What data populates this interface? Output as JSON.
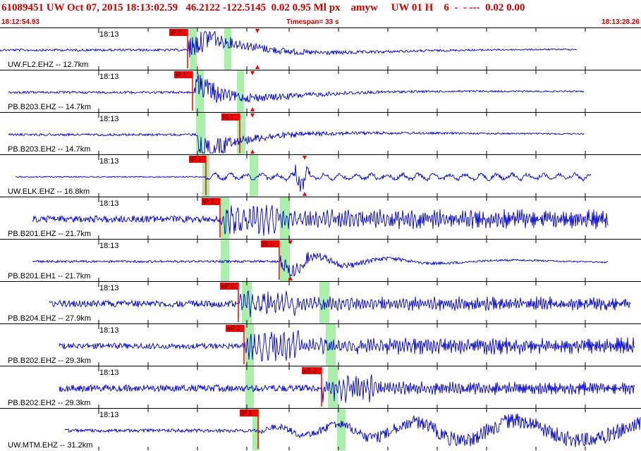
{
  "header": {
    "title": "61089451 UW Oct 07, 2015 18:13:02.59   46.2122 -122.5145  0.02 0.95 Ml px    amyw     UW 01 H    6  -  - ---  0.02 0.00",
    "start_time": "18:12:54.93",
    "timespan": "Timespan=  33 s",
    "end_time": "18:13:28.26"
  },
  "colors": {
    "header_text": "#cc0000",
    "waveform": "#0000cc",
    "pick_flag": "#ff0000",
    "pick_window": "#aaf0aa",
    "divider": "#000000",
    "tick": "#000000"
  },
  "time_tick_label": "18:13",
  "traces": [
    {
      "label": "UW.FL2.EHZ -- 12.7km",
      "picks": [
        {
          "text": "iP 0"
        }
      ],
      "shape": "impulsive"
    },
    {
      "label": "PB.B203.EHZ -- 14.7km",
      "picks": [
        {
          "text": "iP 1"
        }
      ],
      "shape": "impulsive"
    },
    {
      "label": "PB.B203.EH2 -- 14.7km",
      "picks": [
        {
          "text": "iS 1"
        }
      ],
      "shape": "impulsive"
    },
    {
      "label": "UW.ELK.EHZ -- 16.8km",
      "picks": [
        {
          "text": "iP 1"
        }
      ],
      "shape": "late_spike"
    },
    {
      "label": "PB.B201.EHZ -- 21.7km",
      "picks": [
        {
          "text": "iP 1"
        }
      ],
      "shape": "noisy"
    },
    {
      "label": "PB.B201.EH1 -- 21.7km",
      "picks": [
        {
          "text": "iS 1"
        }
      ],
      "shape": "impulsive_small"
    },
    {
      "label": "PB.B204.EHZ -- 27.9km",
      "picks": [
        {
          "text": "eP 2"
        }
      ],
      "shape": "noisy"
    },
    {
      "label": "PB.B202.EHZ -- 29.3km",
      "picks": [
        {
          "text": "eP 2"
        }
      ],
      "shape": "noisy_big"
    },
    {
      "label": "PB.B202.EH2 -- 29.3km",
      "picks": [
        {
          "text": "eS 2"
        }
      ],
      "shape": "noisy"
    },
    {
      "label": "UW.MTM.EHZ -- 31.2km",
      "picks": [
        {
          "text": "iP 1"
        }
      ],
      "shape": "growing"
    }
  ]
}
